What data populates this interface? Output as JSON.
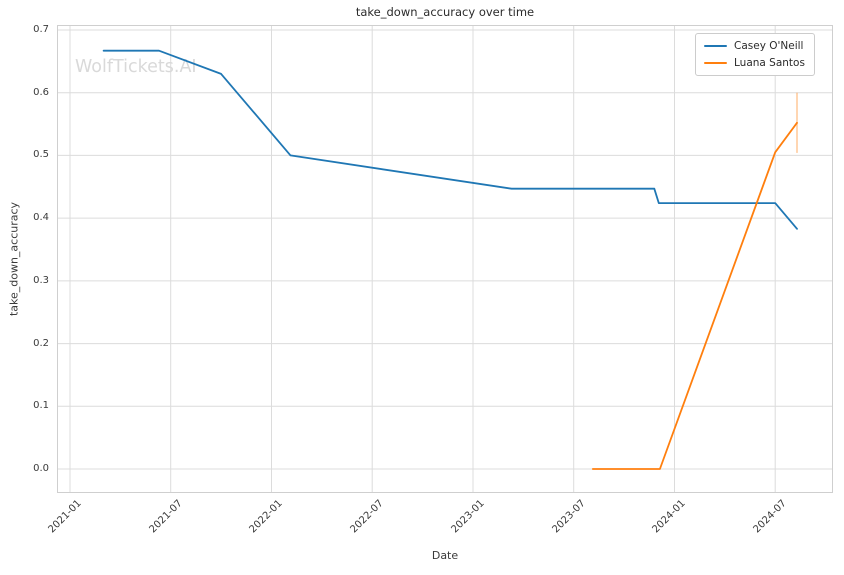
{
  "chart_data": {
    "type": "line",
    "title": "take_down_accuracy over time",
    "xlabel": "Date",
    "ylabel": "take_down_accuracy",
    "watermark": "WolfTickets.AI",
    "grid": true,
    "legend_position": "upper right",
    "ylim": [
      0.0,
      0.7
    ],
    "yticks": [
      0.0,
      0.1,
      0.2,
      0.3,
      0.4,
      0.5,
      0.6,
      0.7
    ],
    "xticks": [
      "2021-01",
      "2021-07",
      "2022-01",
      "2022-07",
      "2023-01",
      "2023-07",
      "2024-01",
      "2024-07"
    ],
    "colors": {
      "grid": "#dcdcdc",
      "spine": "#cfcfcf",
      "watermark": "#d9d9d9",
      "text": "#3a3a3a"
    },
    "series": [
      {
        "name": "Casey O'Neill",
        "color": "#1f77b4",
        "points": [
          [
            "2021-03-01",
            0.667
          ],
          [
            "2021-06-10",
            0.667
          ],
          [
            "2021-10-01",
            0.63
          ],
          [
            "2022-02-05",
            0.5
          ],
          [
            "2023-03-10",
            0.447
          ],
          [
            "2023-11-25",
            0.447
          ],
          [
            "2023-12-03",
            0.424
          ],
          [
            "2024-07-01",
            0.424
          ],
          [
            "2024-08-10",
            0.383
          ]
        ]
      },
      {
        "name": "Luana Santos",
        "color": "#ff7f0e",
        "points": [
          [
            "2023-08-05",
            0.0
          ],
          [
            "2023-12-05",
            0.0
          ],
          [
            "2024-07-01",
            0.505
          ],
          [
            "2024-08-10",
            0.552
          ]
        ],
        "error_bar": {
          "date": "2024-08-10",
          "low": 0.504,
          "high": 0.6
        }
      }
    ]
  }
}
